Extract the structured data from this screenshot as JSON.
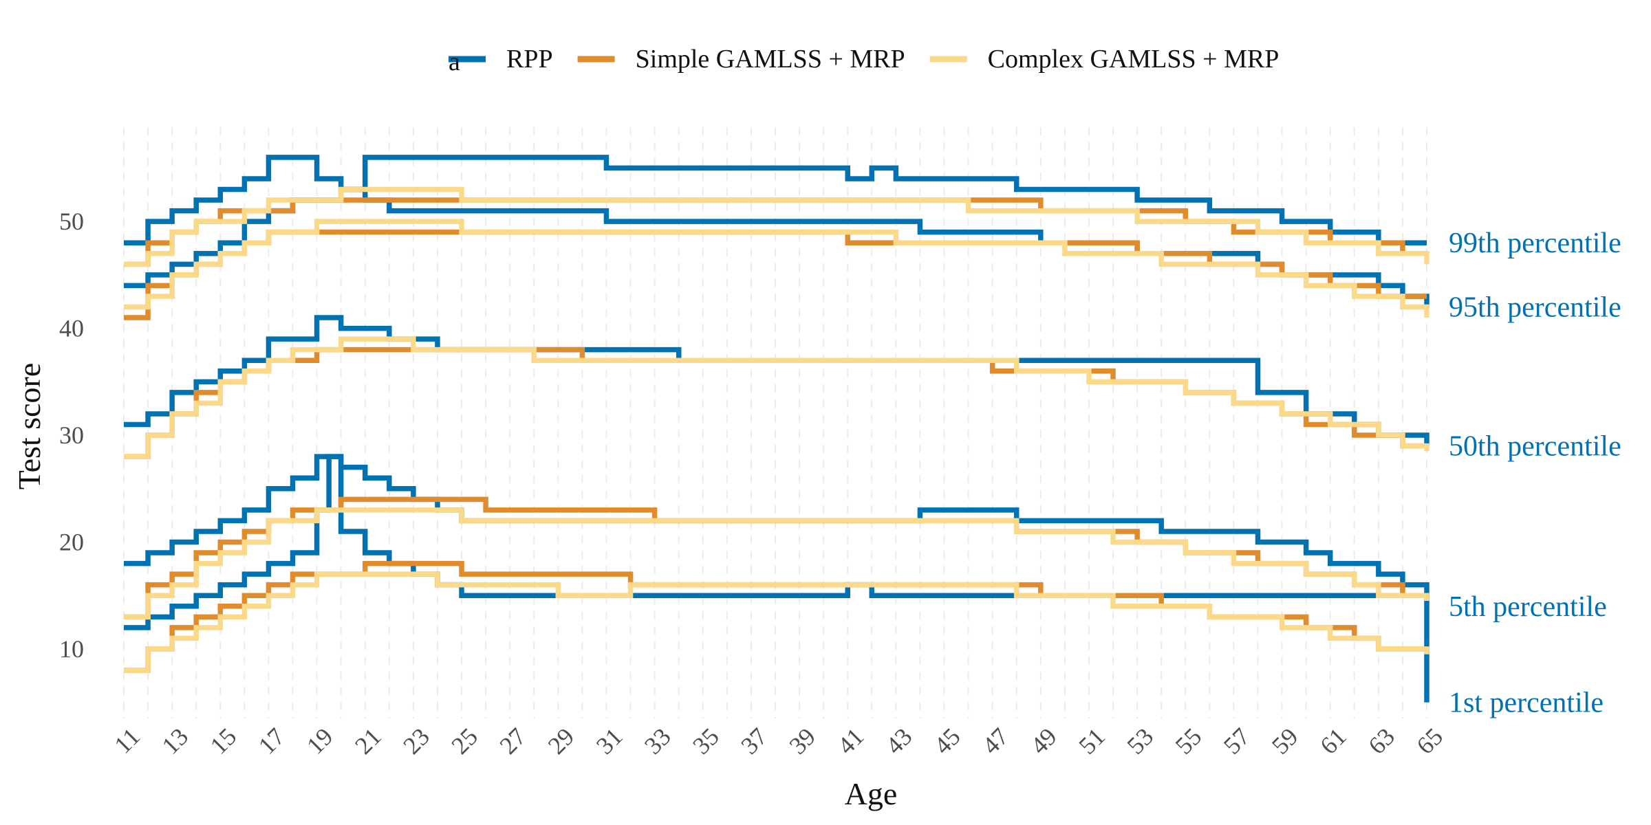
{
  "chart_data": {
    "type": "line",
    "step": true,
    "xlabel": "Age",
    "ylabel": "Test score",
    "xlim": [
      11,
      65
    ],
    "ylim": [
      3.5,
      58.5
    ],
    "yticks": [
      10,
      20,
      30,
      40,
      50
    ],
    "xticks": [
      11,
      13,
      15,
      17,
      19,
      21,
      23,
      25,
      27,
      29,
      31,
      33,
      35,
      37,
      39,
      41,
      43,
      45,
      47,
      49,
      51,
      53,
      55,
      57,
      59,
      61,
      63,
      65
    ],
    "grid": "vertical dashed",
    "legend_position": "top",
    "legend_marker_text": "a",
    "colors": {
      "RPP": "#0072b2",
      "Simple GAMLSS + MRP": "#e08b2c",
      "Complex GAMLSS + MRP": "#fbd98a",
      "percentile_labels": "#0072b2"
    },
    "series": [
      {
        "name": "RPP",
        "percentiles": {
          "1st": {
            "x": [
              11,
              12,
              13,
              14,
              15,
              16,
              17,
              18,
              19,
              19.5,
              20,
              21,
              22,
              23,
              24,
              25,
              31,
              40,
              41,
              42,
              65
            ],
            "y": [
              12,
              13,
              14,
              15,
              16,
              17,
              18,
              19,
              23,
              28,
              21,
              19,
              18,
              17,
              16,
              15,
              15,
              15,
              16,
              15,
              5
            ]
          },
          "5th": {
            "x": [
              11,
              12,
              13,
              14,
              15,
              16,
              17,
              18,
              19,
              19.5,
              20,
              21,
              22,
              23,
              24,
              25,
              44,
              48,
              51,
              54,
              58,
              60,
              61,
              63,
              64,
              65
            ],
            "y": [
              18,
              19,
              20,
              21,
              22,
              23,
              25,
              26,
              28,
              28,
              27,
              26,
              25,
              24,
              23,
              22,
              23,
              22,
              22,
              21,
              20,
              19,
              18,
              17,
              16,
              15
            ]
          },
          "50th": {
            "x": [
              11,
              12,
              13,
              14,
              15,
              16,
              17,
              18,
              19,
              19.5,
              20,
              21,
              22,
              23,
              24,
              25,
              32,
              33,
              34,
              57,
              58,
              60,
              62,
              63,
              65
            ],
            "y": [
              31,
              32,
              34,
              35,
              36,
              37,
              39,
              39,
              41,
              41,
              40,
              40,
              39,
              39,
              38,
              38,
              38,
              38,
              37,
              37,
              34,
              32,
              31,
              30,
              29
            ]
          },
          "95th": {
            "x": [
              11,
              12,
              13,
              14,
              15,
              16,
              17,
              18,
              19,
              19.5,
              20,
              21,
              22,
              23,
              24,
              25,
              31,
              44,
              49,
              52,
              53,
              58,
              59,
              63,
              64,
              65
            ],
            "y": [
              44,
              45,
              46,
              47,
              48,
              50,
              51,
              52,
              52,
              52,
              53,
              52,
              51,
              51,
              51,
              51,
              50,
              49,
              48,
              48,
              47,
              46,
              45,
              44,
              43,
              42
            ]
          },
          "99th": {
            "x": [
              11,
              12,
              13,
              14,
              15,
              16,
              17,
              18,
              19,
              19.5,
              20,
              21,
              22,
              23,
              24,
              25,
              31,
              41,
              42,
              43,
              48,
              53,
              56,
              59,
              61,
              63,
              65
            ],
            "y": [
              48,
              50,
              51,
              52,
              53,
              54,
              56,
              56,
              54,
              54,
              53,
              56,
              56,
              56,
              56,
              56,
              55,
              54,
              55,
              54,
              53,
              52,
              51,
              50,
              49,
              48,
              48
            ]
          }
        }
      },
      {
        "name": "Simple GAMLSS + MRP",
        "percentiles": {
          "1st": {
            "x": [
              11,
              12,
              13,
              14,
              15,
              16,
              17,
              18,
              19,
              20,
              21,
              22,
              23,
              24,
              25,
              32,
              33,
              49,
              52,
              54,
              56,
              58,
              60,
              62,
              63,
              64,
              65
            ],
            "y": [
              8,
              10,
              12,
              13,
              14,
              15,
              16,
              17,
              17,
              17,
              18,
              18,
              18,
              18,
              17,
              16,
              16,
              15,
              15,
              14,
              13,
              13,
              12,
              11,
              10,
              10,
              10
            ]
          },
          "5th": {
            "x": [
              11,
              12,
              13,
              14,
              15,
              16,
              17,
              18,
              19,
              20,
              21,
              22,
              23,
              24,
              25,
              26,
              33,
              48,
              49,
              53,
              55,
              57,
              58,
              60,
              61,
              62,
              63,
              64,
              65
            ],
            "y": [
              13,
              16,
              17,
              19,
              20,
              21,
              22,
              23,
              23,
              24,
              24,
              24,
              24,
              24,
              24,
              23,
              22,
              21,
              21,
              20,
              19,
              19,
              18,
              17,
              17,
              16,
              16,
              15,
              15
            ]
          },
          "50th": {
            "x": [
              11,
              12,
              13,
              14,
              15,
              16,
              17,
              18,
              19,
              20,
              21,
              22,
              23,
              24,
              25,
              30,
              47,
              52,
              55,
              57,
              59,
              60,
              61,
              62,
              63,
              64,
              65
            ],
            "y": [
              28,
              30,
              32,
              34,
              35,
              36,
              37,
              37,
              38,
              38,
              38,
              38,
              38,
              38,
              38,
              37,
              36,
              35,
              34,
              33,
              32,
              31,
              31,
              30,
              30,
              29,
              29
            ]
          },
          "95th": {
            "x": [
              11,
              12,
              13,
              14,
              15,
              16,
              17,
              18,
              19,
              20,
              21,
              22,
              23,
              24,
              25,
              41,
              44,
              51,
              53,
              55,
              56,
              58,
              59,
              60,
              61,
              62,
              63,
              64,
              65
            ],
            "y": [
              41,
              44,
              45,
              46,
              47,
              48,
              49,
              49,
              49,
              49,
              49,
              49,
              49,
              49,
              49,
              48,
              48,
              48,
              47,
              47,
              46,
              46,
              45,
              45,
              44,
              44,
              43,
              43,
              43
            ]
          },
          "99th": {
            "x": [
              11,
              12,
              13,
              14,
              15,
              16,
              17,
              18,
              19,
              20,
              21,
              22,
              23,
              24,
              25,
              46,
              49,
              52,
              55,
              57,
              58,
              60,
              61,
              62,
              63,
              64,
              65
            ],
            "y": [
              46,
              48,
              49,
              50,
              51,
              51,
              51,
              52,
              52,
              52,
              52,
              52,
              52,
              52,
              52,
              52,
              51,
              51,
              50,
              49,
              49,
              49,
              48,
              48,
              48,
              47,
              47
            ]
          }
        }
      },
      {
        "name": "Complex GAMLSS + MRP",
        "percentiles": {
          "1st": {
            "x": [
              11,
              12,
              13,
              14,
              15,
              16,
              17,
              18,
              19,
              20,
              21,
              22,
              23,
              24,
              25,
              26,
              27,
              28,
              29,
              30,
              31,
              32,
              48,
              51,
              52,
              54,
              55,
              56,
              57,
              58,
              59,
              60,
              61,
              62,
              63,
              64,
              65
            ],
            "y": [
              8,
              10,
              11,
              12,
              13,
              14,
              15,
              16,
              17,
              17,
              17,
              17,
              17,
              16,
              16,
              16,
              16,
              16,
              15,
              15,
              15,
              16,
              15,
              15,
              14,
              14,
              14,
              13,
              13,
              13,
              12,
              12,
              11,
              11,
              10,
              10,
              9.5
            ]
          },
          "5th": {
            "x": [
              11,
              12,
              13,
              14,
              15,
              16,
              17,
              18,
              19,
              20,
              21,
              22,
              23,
              24,
              25,
              26,
              27,
              28,
              48,
              52,
              54,
              55,
              57,
              59,
              60,
              62,
              63,
              64,
              65
            ],
            "y": [
              13,
              15,
              16,
              18,
              19,
              20,
              22,
              22,
              23,
              23,
              23,
              23,
              23,
              23,
              22,
              22,
              22,
              22,
              21,
              20,
              20,
              19,
              18,
              18,
              17,
              16,
              15,
              15,
              14.5
            ]
          },
          "50th": {
            "x": [
              11,
              12,
              13,
              14,
              15,
              16,
              17,
              18,
              19,
              20,
              21,
              22,
              23,
              24,
              25,
              28,
              30,
              48,
              51,
              55,
              57,
              59,
              60,
              61,
              63,
              64,
              65
            ],
            "y": [
              28,
              30,
              32,
              33,
              35,
              36,
              37,
              38,
              38,
              39,
              39,
              39,
              38,
              38,
              38,
              37,
              37,
              36,
              35,
              34,
              33,
              32,
              32,
              31,
              30,
              29,
              28.5
            ]
          },
          "95th": {
            "x": [
              11,
              12,
              13,
              14,
              15,
              16,
              17,
              18,
              19,
              20,
              21,
              22,
              23,
              24,
              25,
              38,
              43,
              47,
              50,
              52,
              54,
              56,
              57,
              58,
              59,
              60,
              61,
              62,
              63,
              64,
              65
            ],
            "y": [
              42,
              43,
              45,
              46,
              47,
              48,
              49,
              49,
              50,
              50,
              50,
              50,
              50,
              50,
              49,
              49,
              48,
              48,
              47,
              47,
              46,
              46,
              46,
              45,
              45,
              44,
              44,
              43,
              43,
              42,
              41
            ]
          },
          "99th": {
            "x": [
              11,
              12,
              13,
              14,
              15,
              16,
              17,
              18,
              19,
              20,
              21,
              22,
              23,
              24,
              25,
              38,
              46,
              50,
              53,
              56,
              58,
              59,
              60,
              61,
              62,
              63,
              64,
              65
            ],
            "y": [
              46,
              47,
              49,
              50,
              50,
              51,
              52,
              52,
              52,
              53,
              53,
              53,
              53,
              53,
              52,
              52,
              51,
              51,
              50,
              50,
              49,
              49,
              48,
              48,
              48,
              47,
              47,
              46
            ]
          }
        }
      }
    ],
    "percentile_labels": [
      {
        "text": "99th percentile",
        "key": "99th"
      },
      {
        "text": "95th percentile",
        "key": "95th"
      },
      {
        "text": "50th percentile",
        "key": "50th"
      },
      {
        "text": "5th percentile",
        "key": "5th"
      },
      {
        "text": "1st percentile",
        "key": "1st"
      }
    ],
    "percentile_label_y": {
      "99th": 48,
      "95th": 42,
      "50th": 29,
      "5th": 14,
      "1st": 5
    }
  }
}
